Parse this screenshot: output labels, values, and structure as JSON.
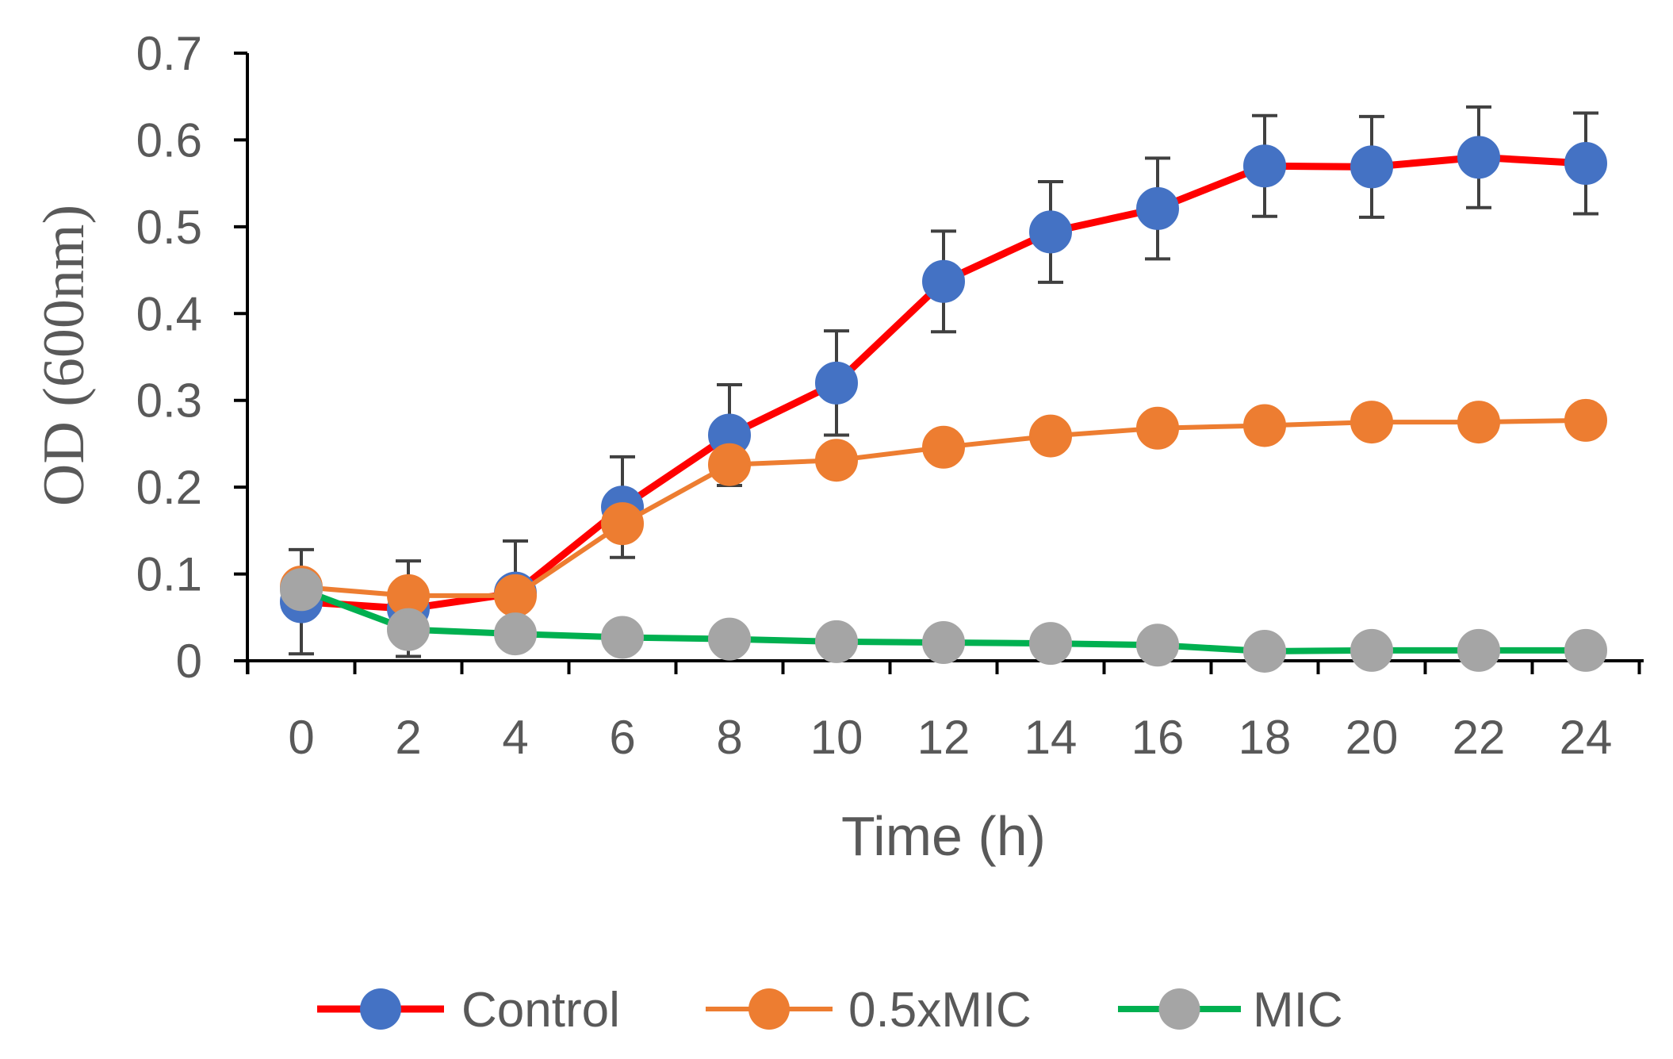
{
  "chart_data": {
    "type": "line",
    "title": "",
    "xlabel": "Time (h)",
    "ylabel": "OD (600nm)",
    "x": [
      0,
      2,
      4,
      6,
      8,
      10,
      12,
      14,
      16,
      18,
      20,
      22,
      24
    ],
    "x_tick_labels": [
      "0",
      "2",
      "4",
      "6",
      "8",
      "10",
      "12",
      "14",
      "16",
      "18",
      "20",
      "22",
      "24"
    ],
    "y_tick_labels": [
      "0",
      "0.1",
      "0.2",
      "0.3",
      "0.4",
      "0.5",
      "0.6",
      "0.7"
    ],
    "ylim": [
      0,
      0.7
    ],
    "grid": false,
    "legend_position": "bottom",
    "series": [
      {
        "name": "Control",
        "line_color": "#ff0000",
        "marker_color": "#4472c4",
        "values": [
          0.068,
          0.06,
          0.078,
          0.177,
          0.26,
          0.32,
          0.437,
          0.494,
          0.521,
          0.57,
          0.569,
          0.58,
          0.573
        ],
        "errors": [
          0.06,
          0.055,
          0.06,
          0.058,
          0.058,
          0.06,
          0.058,
          0.058,
          0.058,
          0.058,
          0.058,
          0.058,
          0.058
        ]
      },
      {
        "name": "0.5xMIC",
        "line_color": "#ed7d31",
        "marker_color": "#ed7d31",
        "values": [
          0.085,
          0.075,
          0.075,
          0.158,
          0.226,
          0.231,
          0.246,
          0.259,
          0.268,
          0.271,
          0.275,
          0.275,
          0.277
        ],
        "errors": [
          0.015,
          0.015,
          0.015,
          0.015,
          0.015,
          0.015,
          0.015,
          0.015,
          0.015,
          0.015,
          0.015,
          0.015,
          0.015
        ]
      },
      {
        "name": "MIC",
        "line_color": "#00b050",
        "marker_color": "#a5a5a5",
        "values": [
          0.082,
          0.036,
          0.031,
          0.027,
          0.025,
          0.022,
          0.021,
          0.02,
          0.018,
          0.011,
          0.012,
          0.012,
          0.012
        ],
        "errors": [
          0.0,
          0.0,
          0.0,
          0.0,
          0.0,
          0.0,
          0.0,
          0.0,
          0.0,
          0.0,
          0.0,
          0.0,
          0.0
        ]
      }
    ]
  }
}
